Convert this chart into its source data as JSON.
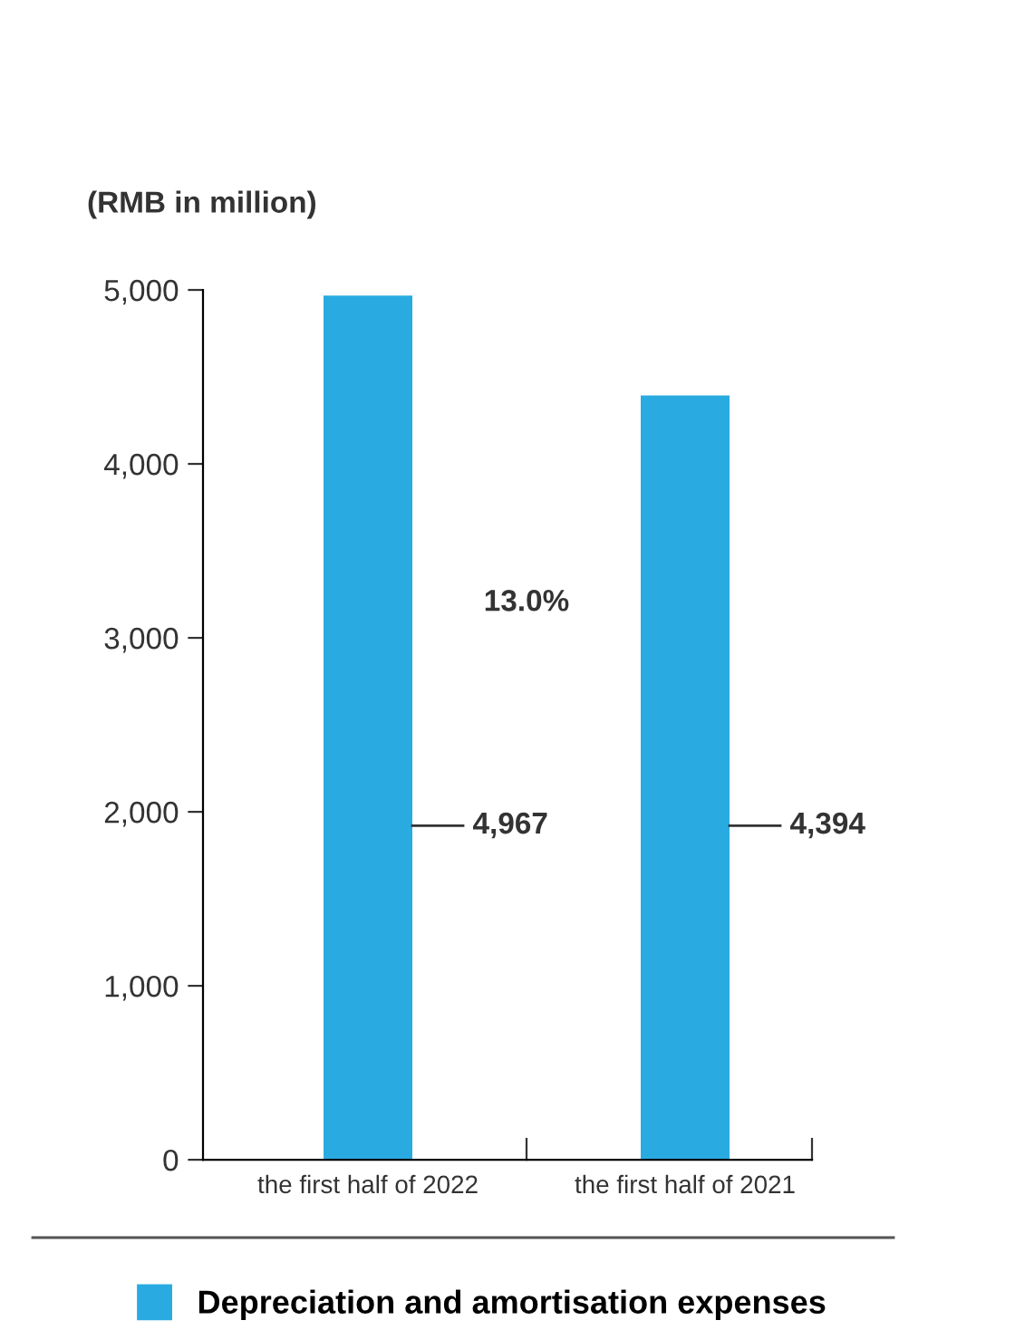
{
  "chart_data": {
    "type": "bar",
    "ylabel": "(RMB in million)",
    "categories": [
      "the first half of 2022",
      "the first half of 2021"
    ],
    "series": [
      {
        "name": "Depreciation and amortisation expenses",
        "color": "#29abe2",
        "values": [
          4967,
          4394
        ],
        "value_labels": [
          "4,967",
          "4,394"
        ]
      }
    ],
    "ylim": [
      0,
      5000
    ],
    "yticks": [
      {
        "value": 0,
        "label": "0"
      },
      {
        "value": 1000,
        "label": "1,000"
      },
      {
        "value": 2000,
        "label": "2,000"
      },
      {
        "value": 3000,
        "label": "3,000"
      },
      {
        "value": 4000,
        "label": "4,000"
      },
      {
        "value": 5000,
        "label": "5,000"
      }
    ],
    "annotations": [
      "13.0%"
    ],
    "grid": false,
    "legend": "bottom"
  }
}
